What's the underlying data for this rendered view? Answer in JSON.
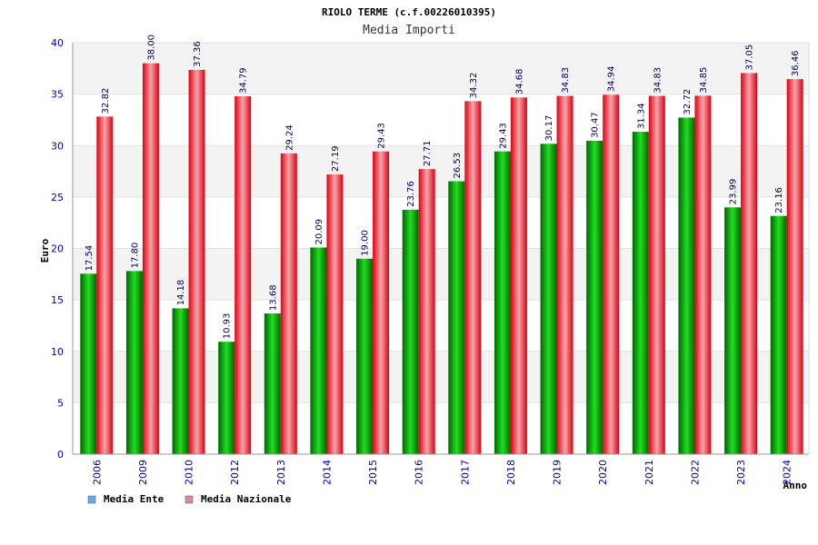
{
  "chart_data": {
    "type": "bar",
    "title": "RIOLO TERME (c.f.00226010395)",
    "subtitle": "Media Importi",
    "ylabel": "Euro",
    "xlabel": "Anno",
    "ylim": [
      0,
      40
    ],
    "yticks": [
      0,
      5,
      10,
      15,
      20,
      25,
      30,
      35,
      40
    ],
    "grid": true,
    "legend_position": "bottom-left",
    "categories": [
      "2006",
      "2009",
      "2010",
      "2012",
      "2013",
      "2014",
      "2015",
      "2016",
      "2017",
      "2018",
      "2019",
      "2020",
      "2021",
      "2022",
      "2023",
      "2024"
    ],
    "series": [
      {
        "name": "Media Ente",
        "color": "#00bb00",
        "legend_color": "#66aaee",
        "values": [
          17.54,
          17.8,
          14.18,
          10.93,
          13.68,
          20.09,
          19.0,
          23.76,
          26.53,
          29.43,
          30.17,
          30.47,
          31.34,
          32.72,
          23.99,
          23.16
        ],
        "labels": [
          "17.54",
          "17.80",
          "14.18",
          "10.93",
          "13.68",
          "20.09",
          "19.00",
          "23.76",
          "26.53",
          "29.43",
          "30.17",
          "30.47",
          "31.34",
          "32.72",
          "23.99",
          "23.16"
        ]
      },
      {
        "name": "Media Nazionale",
        "color": "#ee1122",
        "legend_color": "#dd88aa",
        "values": [
          32.82,
          38.0,
          37.36,
          34.79,
          29.24,
          27.19,
          29.43,
          27.71,
          34.32,
          34.68,
          34.83,
          34.94,
          34.83,
          34.85,
          37.05,
          36.46
        ],
        "labels": [
          "32.82",
          "38.00",
          "37.36",
          "34.79",
          "29.24",
          "27.19",
          "29.43",
          "27.71",
          "34.32",
          "34.68",
          "34.83",
          "34.94",
          "34.83",
          "34.85",
          "37.05",
          "36.46"
        ]
      }
    ]
  }
}
